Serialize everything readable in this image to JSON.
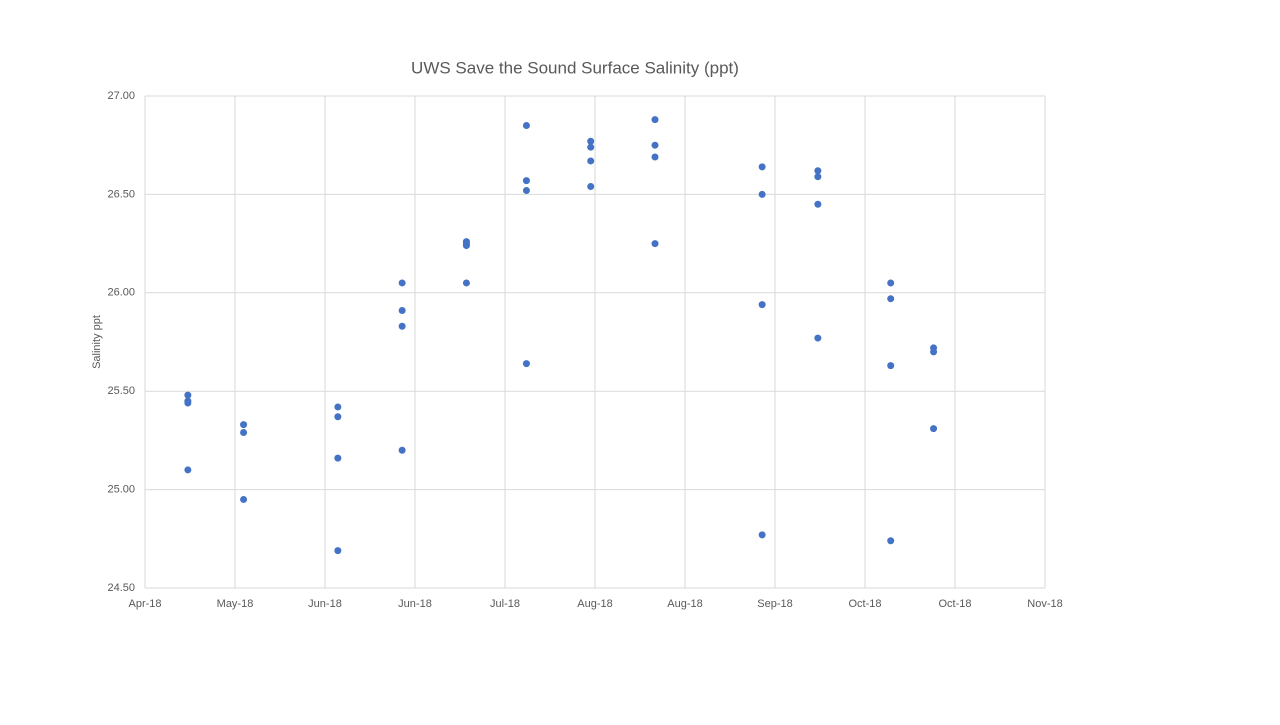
{
  "chart_data": {
    "type": "scatter",
    "title": "UWS Save the Sound Surface Salinity (ppt)",
    "y_label": "Salinity ppt",
    "series": [
      {
        "color": "#4472c4",
        "x": [
          10,
          10,
          10,
          10,
          23,
          23,
          23,
          45,
          45,
          45,
          45,
          60,
          60,
          60,
          60,
          75,
          75,
          75,
          75,
          89,
          89,
          89,
          89,
          104,
          104,
          104,
          104,
          119,
          119,
          119,
          119,
          144,
          144,
          144,
          144,
          157,
          157,
          157,
          157,
          174,
          174,
          174,
          174,
          184,
          184,
          184
        ],
        "values": [
          25.48,
          25.45,
          25.44,
          25.1,
          25.33,
          25.29,
          24.95,
          25.42,
          25.37,
          25.16,
          24.69,
          26.05,
          25.91,
          25.83,
          25.2,
          26.26,
          26.25,
          26.24,
          26.05,
          26.85,
          26.57,
          26.52,
          25.64,
          26.77,
          26.74,
          26.67,
          26.54,
          26.88,
          26.75,
          26.69,
          26.25,
          26.64,
          26.5,
          25.94,
          24.77,
          26.62,
          26.59,
          26.45,
          25.77,
          26.05,
          25.97,
          25.63,
          24.74,
          25.72,
          25.7,
          25.31
        ]
      }
    ],
    "xlim": [
      0,
      210
    ],
    "xticks": [
      {
        "value": 0,
        "label": "Apr-18"
      },
      {
        "value": 21,
        "label": "May-18"
      },
      {
        "value": 42,
        "label": "Jun-18"
      },
      {
        "value": 63,
        "label": "Jun-18"
      },
      {
        "value": 84,
        "label": "Jul-18"
      },
      {
        "value": 105,
        "label": "Aug-18"
      },
      {
        "value": 126,
        "label": "Aug-18"
      },
      {
        "value": 147,
        "label": "Sep-18"
      },
      {
        "value": 168,
        "label": "Oct-18"
      },
      {
        "value": 189,
        "label": "Oct-18"
      },
      {
        "value": 210,
        "label": "Nov-18"
      }
    ],
    "ylim": [
      24.5,
      27
    ],
    "yticks": [
      {
        "value": 24.5,
        "label": "24.50"
      },
      {
        "value": 25,
        "label": "25.00"
      },
      {
        "value": 25.5,
        "label": "25.50"
      },
      {
        "value": 26,
        "label": "26.00"
      },
      {
        "value": 26.5,
        "label": "26.50"
      },
      {
        "value": 27,
        "label": "27.00"
      }
    ],
    "grid": true
  }
}
